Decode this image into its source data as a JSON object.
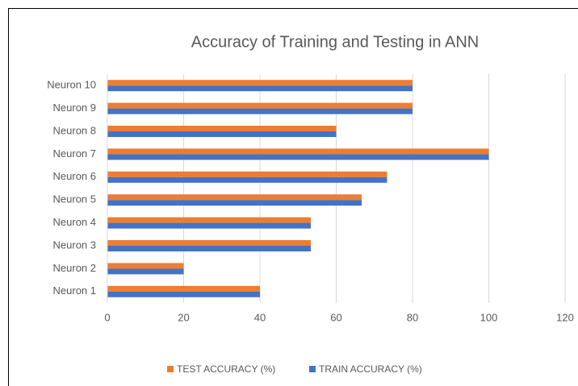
{
  "chart_data": {
    "type": "bar",
    "orientation": "horizontal",
    "title": "Accuracy of Training and Testing in ANN",
    "categories": [
      "Neuron 1",
      "Neuron 2",
      "Neuron 3",
      "Neuron 4",
      "Neuron 5",
      "Neuron 6",
      "Neuron 7",
      "Neuron 8",
      "Neuron 9",
      "Neuron 10"
    ],
    "series": [
      {
        "name": "TEST ACCURACY (%)",
        "color": "#ed7d31",
        "values": [
          40,
          20,
          53.33,
          53.33,
          66.67,
          73.33,
          100,
          60,
          80,
          80
        ]
      },
      {
        "name": "TRAIN ACCURACY (%)",
        "color": "#4472c4",
        "values": [
          40,
          20,
          53.33,
          53.33,
          66.67,
          73.33,
          100,
          60,
          80,
          80
        ]
      }
    ],
    "xlim": [
      0,
      120
    ],
    "xticks": [
      0,
      20,
      40,
      60,
      80,
      100,
      120
    ],
    "grid": true,
    "legend": "bottom"
  }
}
